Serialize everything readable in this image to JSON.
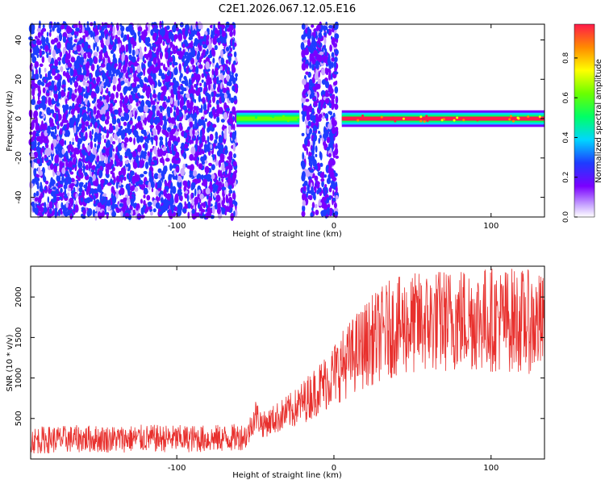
{
  "title": "C2E1.2026.067.12.05.E16",
  "chart_data": [
    {
      "type": "heatmap",
      "xlabel": "Height of straight line (km)",
      "ylabel": "Frequency (Hz)",
      "xlim": [
        -193,
        134
      ],
      "ylim": [
        -50,
        48
      ],
      "xticks": [
        -100,
        0,
        100
      ],
      "yticks": [
        -40,
        -20,
        0,
        20,
        40
      ],
      "colorbar": {
        "label": "Normalized spectral amplitude",
        "range": [
          0,
          0.97
        ],
        "ticks": [
          0.0,
          0.2,
          0.4,
          0.6,
          0.8
        ]
      },
      "regions": [
        {
          "kind": "broadband noise",
          "x": [
            -193,
            -62
          ],
          "freq": [
            -50,
            48
          ],
          "amplitude": 0.15
        },
        {
          "kind": "narrow line",
          "x": [
            -62,
            -22
          ],
          "freq": [
            -3,
            3
          ],
          "amplitude": 0.6
        },
        {
          "kind": "broadband burst",
          "x": [
            -20,
            2
          ],
          "freq": [
            -50,
            48
          ],
          "amplitude": 0.15
        },
        {
          "kind": "narrow line",
          "x": [
            5,
            134
          ],
          "freq": [
            -3,
            3
          ],
          "amplitude": 0.95
        }
      ]
    },
    {
      "type": "line",
      "xlabel": "Height of straight line (km)",
      "ylabel": "SNR (10 * v/v)",
      "xlim": [
        -193,
        134
      ],
      "ylim": [
        0,
        2380
      ],
      "xticks": [
        -100,
        0,
        100
      ],
      "yticks": [
        500,
        1000,
        1500,
        2000
      ],
      "series": [
        {
          "color": "#e8302d",
          "x": [
            -193,
            -180,
            -160,
            -140,
            -120,
            -100,
            -80,
            -65,
            -55,
            -50,
            -45,
            -35,
            -25,
            -15,
            -5,
            5,
            15,
            25,
            35,
            45,
            55,
            65,
            75,
            85,
            95,
            105,
            115,
            125,
            134
          ],
          "y": [
            230,
            240,
            250,
            245,
            255,
            250,
            250,
            260,
            290,
            550,
            420,
            520,
            620,
            780,
            950,
            1150,
            1330,
            1480,
            1600,
            1650,
            1680,
            1700,
            1720,
            1740,
            1730,
            1720,
            1720,
            1690,
            1650
          ]
        }
      ]
    }
  ]
}
